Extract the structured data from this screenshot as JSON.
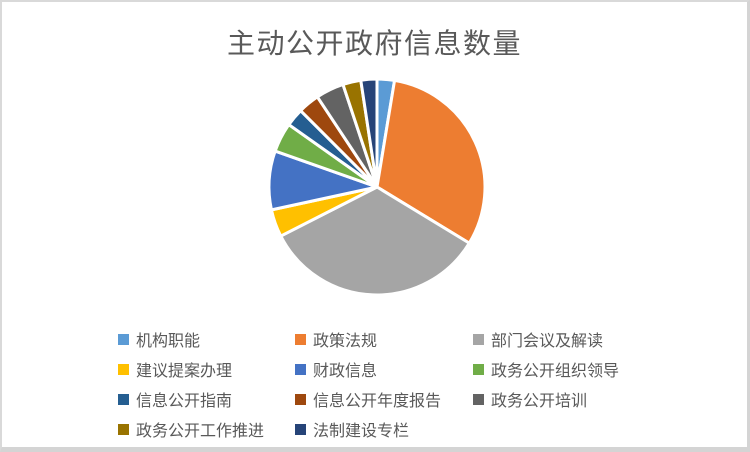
{
  "page": {
    "background_color": "#FFFFFF",
    "frame_border_color": "#D9D9D9"
  },
  "chart_data": {
    "type": "pie",
    "title": "主动公开政府信息数量",
    "title_color": "#595959",
    "legend_position": "bottom",
    "legend_text_color": "#595959",
    "legend_columns": 3,
    "start_angle_deg": 0,
    "clockwise": true,
    "slice_separator_color": "#FFFFFF",
    "note": "no numeric data labels shown; slice values estimated as percent of whole from arc angles",
    "series": [
      {
        "name": "机构职能",
        "color": "#5B9BD5",
        "percent": 2.6
      },
      {
        "name": "政策法规",
        "color": "#ED7D31",
        "percent": 31.1
      },
      {
        "name": "部门会议及解读",
        "color": "#A5A5A5",
        "percent": 33.8
      },
      {
        "name": "建议提案办理",
        "color": "#FFC000",
        "percent": 4.1
      },
      {
        "name": "财政信息",
        "color": "#4472C4",
        "percent": 8.8
      },
      {
        "name": "政务公开组织领导",
        "color": "#70AD47",
        "percent": 4.4
      },
      {
        "name": "信息公开指南",
        "color": "#255E91",
        "percent": 2.7
      },
      {
        "name": "信息公开年度报告",
        "color": "#9E480E",
        "percent": 3.2
      },
      {
        "name": "政务公开培训",
        "color": "#636363",
        "percent": 4.2
      },
      {
        "name": "政务公开工作推进",
        "color": "#997300",
        "percent": 2.7
      },
      {
        "name": "法制建设专栏",
        "color": "#264478",
        "percent": 2.4
      }
    ]
  }
}
